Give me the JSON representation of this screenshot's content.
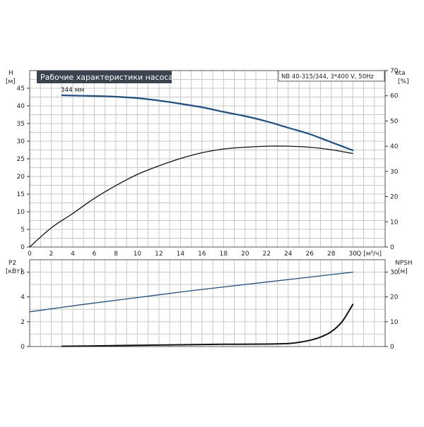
{
  "chart_data": [
    {
      "type": "line",
      "title": "Рабочие характеристики насоса",
      "model_label": "NB 40-315/344, 3*400 V, 50Hz",
      "xlabel": "Q [м³/ч]",
      "x_ticks": [
        0,
        2,
        4,
        6,
        8,
        10,
        12,
        14,
        16,
        18,
        20,
        22,
        24,
        26,
        28,
        30
      ],
      "xlim": [
        0,
        33
      ],
      "left_axis": {
        "label_top": "H",
        "label_unit": "[м]",
        "ticks": [
          0,
          5,
          10,
          15,
          20,
          25,
          30,
          35,
          40,
          45
        ],
        "ylim": [
          0,
          50
        ]
      },
      "right_axis": {
        "label_top": "eta",
        "label_unit": "[%]",
        "ticks": [
          0,
          10,
          20,
          30,
          40,
          50,
          60,
          70
        ],
        "ylim": [
          0,
          70
        ]
      },
      "grid": true,
      "series": [
        {
          "name": "344 мм",
          "axis": "left",
          "color": "#1c4f86",
          "x": [
            3,
            6,
            8,
            10,
            12,
            14,
            16,
            18,
            20,
            22,
            24,
            26,
            28,
            30
          ],
          "y": [
            43,
            42.8,
            42.6,
            42.2,
            41.5,
            40.6,
            39.6,
            38.3,
            37.1,
            35.6,
            33.8,
            32.0,
            29.7,
            27.4
          ]
        },
        {
          "axis": "right",
          "color": "#111111",
          "x": [
            0,
            2,
            4,
            6,
            8,
            10,
            12,
            14,
            16,
            18,
            20,
            22,
            24,
            26,
            28,
            30
          ],
          "y": [
            0,
            7.6,
            13.3,
            19.3,
            24.4,
            28.8,
            32.2,
            35.1,
            37.4,
            38.9,
            39.6,
            40.0,
            40.0,
            39.6,
            38.6,
            37.1
          ]
        }
      ]
    },
    {
      "type": "line",
      "left_axis": {
        "label_top": "P2",
        "label_unit": "[кВт]",
        "ticks": [
          0,
          2,
          4,
          6
        ],
        "ylim": [
          0,
          7
        ]
      },
      "right_axis": {
        "label_top": "NPSH",
        "label_unit": "[м]",
        "ticks": [
          0,
          10,
          20,
          30
        ],
        "ylim": [
          0,
          35
        ]
      },
      "xlim": [
        0,
        33
      ],
      "grid": true,
      "series": [
        {
          "axis": "left",
          "color": "#1c4f86",
          "x": [
            0,
            5,
            10,
            15,
            20,
            25,
            30
          ],
          "y": [
            2.8,
            3.4,
            3.95,
            4.5,
            5.0,
            5.5,
            6.0
          ]
        },
        {
          "axis": "right",
          "color": "#111111",
          "x": [
            3,
            6,
            10,
            14,
            18,
            22,
            24,
            25,
            26,
            27,
            28,
            29,
            30
          ],
          "y": [
            0.1,
            0.25,
            0.5,
            0.7,
            0.9,
            1.0,
            1.2,
            1.7,
            2.5,
            3.8,
            6.0,
            10.0,
            17.0
          ]
        }
      ]
    }
  ]
}
